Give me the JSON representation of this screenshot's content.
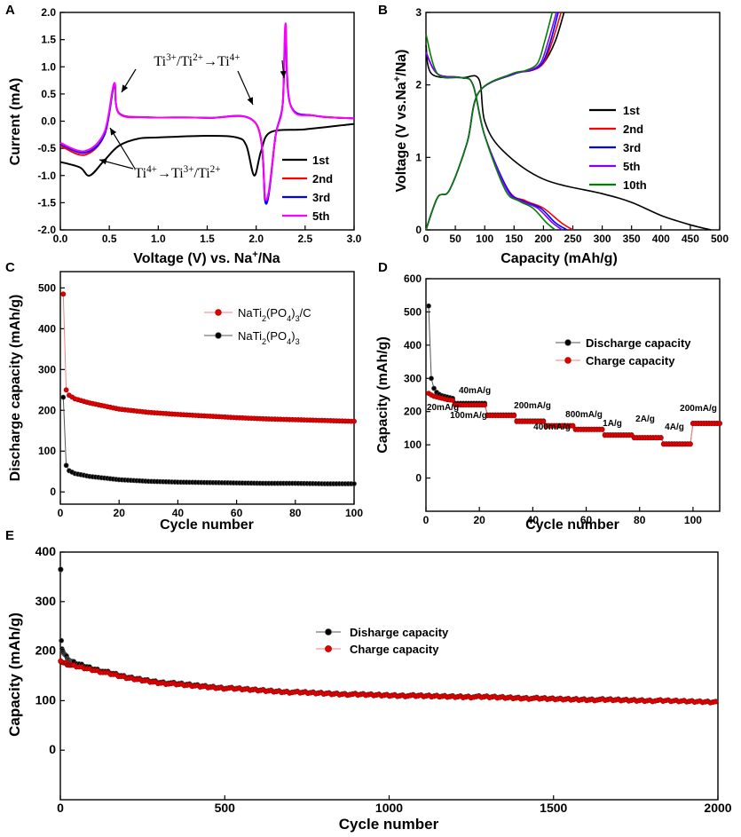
{
  "chart_data": [
    {
      "panel": "A",
      "type": "line",
      "xlabel": "Voltage (V) vs. Na+/Na",
      "ylabel": "Current (mA)",
      "xlim": [
        0.0,
        3.0
      ],
      "ylim": [
        -2.0,
        2.0
      ],
      "xticks": [
        "0.0",
        "0.5",
        "1.0",
        "1.5",
        "2.0",
        "2.5",
        "3.0"
      ],
      "yticks": [
        "-2.0",
        "-1.5",
        "-1.0",
        "-0.5",
        "0.0",
        "0.5",
        "1.0",
        "1.5",
        "2.0"
      ],
      "annotations": {
        "top": "Ti3+/Ti2+→Ti4+",
        "bottom": "Ti4+→Ti3+/Ti2+"
      },
      "legend": [
        "1st",
        "2nd",
        "3rd",
        "5th"
      ],
      "series": [
        {
          "name": "1st",
          "color": "#000000",
          "x": [
            0.0,
            0.2,
            0.3,
            0.45,
            0.6,
            0.8,
            1.0,
            1.5,
            1.8,
            1.9,
            1.98,
            2.05,
            2.15,
            2.5,
            3.0
          ],
          "y": [
            -0.75,
            -0.85,
            -1.0,
            -0.72,
            -0.45,
            -0.32,
            -0.3,
            -0.27,
            -0.3,
            -0.45,
            -1.0,
            -0.55,
            -0.2,
            -0.15,
            -0.05
          ]
        },
        {
          "name": "2nd",
          "color": "#ff0000",
          "x": [
            0.0,
            0.25,
            0.45,
            0.55,
            0.6,
            0.9,
            1.5,
            2.0,
            2.1,
            2.2,
            2.27,
            2.3,
            2.35,
            2.6,
            3.0
          ],
          "y": [
            -0.45,
            -0.62,
            -0.25,
            0.68,
            0.15,
            0.07,
            0.06,
            -0.05,
            -1.5,
            -0.25,
            0.3,
            1.6,
            0.3,
            0.1,
            0.05
          ]
        },
        {
          "name": "3rd",
          "color": "#0000ff",
          "x": [
            0.0,
            0.25,
            0.45,
            0.55,
            0.6,
            0.9,
            1.5,
            2.0,
            2.1,
            2.2,
            2.27,
            2.3,
            2.35,
            2.6,
            3.0
          ],
          "y": [
            -0.42,
            -0.58,
            -0.25,
            0.66,
            0.14,
            0.07,
            0.06,
            -0.05,
            -1.52,
            -0.25,
            0.3,
            1.58,
            0.3,
            0.1,
            0.05
          ]
        },
        {
          "name": "5th",
          "color": "#ff00ff",
          "x": [
            0.0,
            0.25,
            0.45,
            0.55,
            0.6,
            0.9,
            1.5,
            2.0,
            2.1,
            2.2,
            2.27,
            2.3,
            2.35,
            2.6,
            3.0
          ],
          "y": [
            -0.4,
            -0.55,
            -0.2,
            0.7,
            0.14,
            0.07,
            0.06,
            -0.05,
            -1.45,
            -0.25,
            0.3,
            1.8,
            0.3,
            0.1,
            0.05
          ]
        }
      ]
    },
    {
      "panel": "B",
      "type": "line",
      "xlabel": "Capacity (mAh/g)",
      "ylabel": "Voltage (V vs.Na+/Na)",
      "xlim": [
        0,
        500
      ],
      "ylim": [
        0,
        3
      ],
      "xticks": [
        "0",
        "50",
        "100",
        "150",
        "200",
        "250",
        "300",
        "350",
        "400",
        "450",
        "500"
      ],
      "yticks": [
        "0",
        "1",
        "2",
        "3"
      ],
      "legend": [
        "1st",
        "2nd",
        "3rd",
        "5th",
        "10th"
      ],
      "series": [
        {
          "name": "1st",
          "color": "#000000",
          "discharge": {
            "x": [
              0,
              10,
              60,
              90,
              100,
              130,
              200,
              300,
              350,
              400,
              450,
              485
            ],
            "y": [
              2.55,
              2.15,
              2.1,
              2.08,
              1.5,
              1.1,
              0.7,
              0.5,
              0.38,
              0.2,
              0.07,
              0.0
            ]
          },
          "charge": {
            "x": [
              0,
              20,
              40,
              70,
              90,
              150,
              180,
              200,
              220,
              235
            ],
            "y": [
              0.0,
              0.45,
              0.55,
              1.2,
              1.9,
              2.15,
              2.2,
              2.3,
              2.6,
              3.0
            ]
          }
        },
        {
          "name": "2nd",
          "color": "#ff0000",
          "discharge": {
            "x": [
              0,
              20,
              60,
              80,
              100,
              140,
              170,
              200,
              230,
              250
            ],
            "y": [
              2.45,
              2.15,
              2.1,
              2.0,
              1.3,
              0.55,
              0.4,
              0.3,
              0.1,
              0.0
            ]
          },
          "charge": {
            "x": [
              0,
              20,
              40,
              70,
              90,
              150,
              180,
              200,
              215,
              230
            ],
            "y": [
              0.0,
              0.45,
              0.55,
              1.2,
              1.9,
              2.15,
              2.2,
              2.3,
              2.6,
              3.0
            ]
          }
        },
        {
          "name": "3rd",
          "color": "#0000ff",
          "discharge": {
            "x": [
              0,
              20,
              60,
              80,
              100,
              140,
              165,
              195,
              220,
              240
            ],
            "y": [
              2.45,
              2.15,
              2.1,
              2.0,
              1.3,
              0.55,
              0.4,
              0.3,
              0.1,
              0.0
            ]
          },
          "charge": {
            "x": [
              0,
              20,
              40,
              70,
              90,
              150,
              178,
              198,
              212,
              225
            ],
            "y": [
              0.0,
              0.45,
              0.55,
              1.2,
              1.9,
              2.15,
              2.2,
              2.3,
              2.6,
              3.0
            ]
          }
        },
        {
          "name": "5th",
          "color": "#8000ff",
          "discharge": {
            "x": [
              0,
              20,
              60,
              80,
              100,
              138,
              162,
              190,
              215,
              232
            ],
            "y": [
              2.45,
              2.15,
              2.1,
              2.0,
              1.3,
              0.55,
              0.4,
              0.3,
              0.1,
              0.0
            ]
          },
          "charge": {
            "x": [
              0,
              20,
              40,
              70,
              90,
              148,
              175,
              195,
              208,
              222
            ],
            "y": [
              0.0,
              0.45,
              0.55,
              1.2,
              1.9,
              2.15,
              2.2,
              2.3,
              2.6,
              3.0
            ]
          }
        },
        {
          "name": "10th",
          "color": "#008000",
          "discharge": {
            "x": [
              0,
              20,
              60,
              80,
              100,
              135,
              158,
              182,
              205,
              220
            ],
            "y": [
              2.7,
              2.15,
              2.1,
              2.0,
              1.3,
              0.55,
              0.4,
              0.3,
              0.1,
              0.0
            ]
          },
          "charge": {
            "x": [
              0,
              20,
              40,
              70,
              90,
              145,
              170,
              190,
              202,
              215
            ],
            "y": [
              0.0,
              0.45,
              0.55,
              1.2,
              1.9,
              2.15,
              2.2,
              2.3,
              2.6,
              3.0
            ]
          }
        }
      ]
    },
    {
      "panel": "C",
      "type": "line",
      "xlabel": "Cycle number",
      "ylabel": "Discharge capacity (mAh/g)",
      "xlim": [
        0,
        100
      ],
      "ylim": [
        -30,
        540
      ],
      "xticks": [
        "0",
        "20",
        "40",
        "60",
        "80",
        "100"
      ],
      "yticks": [
        "0",
        "100",
        "200",
        "300",
        "400",
        "500"
      ],
      "legend": [
        "NaTi2(PO4)3/C",
        "NaTi2(PO4)3"
      ],
      "series": [
        {
          "name": "NaTi2(PO4)3/C",
          "color": "#e00000",
          "points": [
            [
              1,
              485
            ],
            [
              2,
              250
            ],
            [
              3,
              237
            ],
            [
              5,
              228
            ],
            [
              10,
              218
            ],
            [
              20,
              203
            ],
            [
              30,
              195
            ],
            [
              40,
              190
            ],
            [
              50,
              186
            ],
            [
              60,
              182
            ],
            [
              70,
              179
            ],
            [
              80,
              177
            ],
            [
              90,
              175
            ],
            [
              100,
              173
            ]
          ]
        },
        {
          "name": "NaTi2(PO4)3",
          "color": "#000000",
          "points": [
            [
              1,
              232
            ],
            [
              2,
              65
            ],
            [
              3,
              52
            ],
            [
              5,
              45
            ],
            [
              10,
              38
            ],
            [
              20,
              30
            ],
            [
              30,
              26
            ],
            [
              40,
              24
            ],
            [
              50,
              23
            ],
            [
              60,
              22
            ],
            [
              70,
              21
            ],
            [
              80,
              21
            ],
            [
              90,
              20
            ],
            [
              100,
              20
            ]
          ]
        }
      ]
    },
    {
      "panel": "D",
      "type": "line",
      "xlabel": "Cycle number",
      "ylabel": "Capacity (mAh/g)",
      "xlim": [
        0,
        110
      ],
      "ylim": [
        -100,
        600
      ],
      "xticks": [
        "0",
        "20",
        "40",
        "60",
        "80",
        "100"
      ],
      "yticks": [
        "0",
        "100",
        "200",
        "300",
        "400",
        "500",
        "600"
      ],
      "legend": [
        "Discharge capacity",
        "Charge capacity"
      ],
      "rate_labels": [
        "20mA/g",
        "40mA/g",
        "100mA/g",
        "200mA/g",
        "400mA/g",
        "800mA/g",
        "1A/g",
        "2A/g",
        "4A/g",
        "200mA/g"
      ],
      "steps": [
        {
          "from": 1,
          "to": 10,
          "discharge": [
            518,
            300,
            270,
            258,
            252,
            248,
            246,
            244,
            242,
            240
          ],
          "charge": [
            255,
            250,
            246,
            244,
            242,
            240,
            238,
            236,
            235,
            234
          ]
        },
        {
          "from": 11,
          "to": 22,
          "discharge": 225,
          "charge": 220
        },
        {
          "from": 23,
          "to": 33,
          "discharge": 190,
          "charge": 188
        },
        {
          "from": 34,
          "to": 44,
          "discharge": 172,
          "charge": 170
        },
        {
          "from": 45,
          "to": 55,
          "discharge": 158,
          "charge": 157
        },
        {
          "from": 56,
          "to": 66,
          "discharge": 147,
          "charge": 146
        },
        {
          "from": 67,
          "to": 77,
          "discharge": 130,
          "charge": 129
        },
        {
          "from": 78,
          "to": 88,
          "discharge": 122,
          "charge": 121
        },
        {
          "from": 89,
          "to": 99,
          "discharge": 103,
          "charge": 102
        },
        {
          "from": 100,
          "to": 110,
          "discharge": 165,
          "charge": 164
        }
      ]
    },
    {
      "panel": "E",
      "type": "scatter",
      "xlabel": "Cycle number",
      "ylabel": "Capacity (mAh/g)",
      "xlim": [
        0,
        2000
      ],
      "ylim": [
        -100,
        400
      ],
      "xticks": [
        "0",
        "500",
        "1000",
        "1500",
        "2000"
      ],
      "yticks": [
        "0",
        "100",
        "200",
        "300",
        "400"
      ],
      "legend": [
        "Disharge capacity",
        "Charge capacity"
      ],
      "series": [
        {
          "name": "Disharge capacity",
          "color": "#000000",
          "points": [
            [
              1,
              365
            ],
            [
              3,
              222
            ],
            [
              5,
              205
            ],
            [
              10,
              195
            ],
            [
              30,
              180
            ],
            [
              100,
              165
            ],
            [
              200,
              148
            ],
            [
              300,
              138
            ],
            [
              400,
              132
            ],
            [
              500,
              126
            ],
            [
              700,
              118
            ],
            [
              900,
              113
            ],
            [
              1100,
              110
            ],
            [
              1300,
              108
            ],
            [
              1500,
              104
            ],
            [
              1700,
              102
            ],
            [
              1900,
              99
            ],
            [
              2000,
              98
            ]
          ]
        },
        {
          "name": "Charge capacity",
          "color": "#e00000",
          "points": [
            [
              1,
              180
            ],
            [
              5,
              178
            ],
            [
              10,
              176
            ],
            [
              30,
              172
            ],
            [
              100,
              162
            ],
            [
              200,
              146
            ],
            [
              300,
              136
            ],
            [
              400,
              130
            ],
            [
              500,
              125
            ],
            [
              700,
              117
            ],
            [
              900,
              112
            ],
            [
              1100,
              109
            ],
            [
              1300,
              107
            ],
            [
              1500,
              103
            ],
            [
              1700,
              101
            ],
            [
              1900,
              99
            ],
            [
              2000,
              97
            ]
          ]
        }
      ]
    }
  ],
  "panel_letters": [
    "A",
    "B",
    "C",
    "D",
    "E"
  ]
}
